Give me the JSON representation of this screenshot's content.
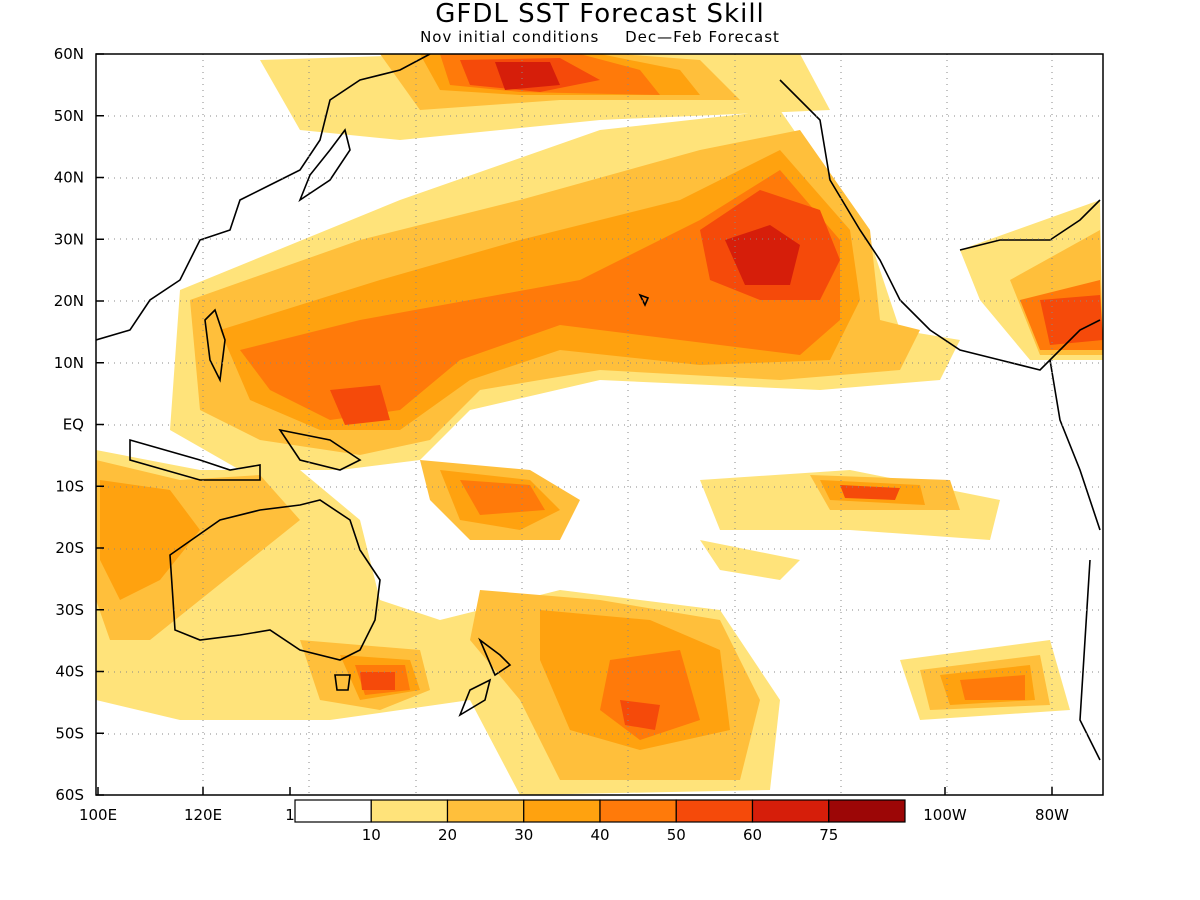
{
  "title": "GFDL SST Forecast Skill",
  "subtitle": {
    "left": "Nov initial conditions",
    "right": "Dec—Feb Forecast"
  },
  "axes": {
    "lat_labels": [
      "60N",
      "50N",
      "40N",
      "30N",
      "20N",
      "10N",
      "EQ",
      "10S",
      "20S",
      "30S",
      "40S",
      "50S",
      "60S"
    ],
    "lon_labels": [
      "100E",
      "120E",
      "1",
      "100W",
      "80W"
    ],
    "lat_range": [
      -60,
      60
    ],
    "lon_range_desc": "100E to ~75W (Pacific-centered)",
    "grid": "dotted"
  },
  "colorbar": {
    "boundaries": [
      "10",
      "20",
      "30",
      "40",
      "50",
      "60",
      "75"
    ],
    "colors": [
      "#ffffff",
      "#ffe37a",
      "#ffbf3b",
      "#ffa20f",
      "#ff7a0a",
      "#f54a0a",
      "#d61e0a",
      "#9c0606"
    ]
  },
  "map_features": {
    "coastlines": "black outline",
    "data_field": "SST forecast skill shaded contours"
  }
}
